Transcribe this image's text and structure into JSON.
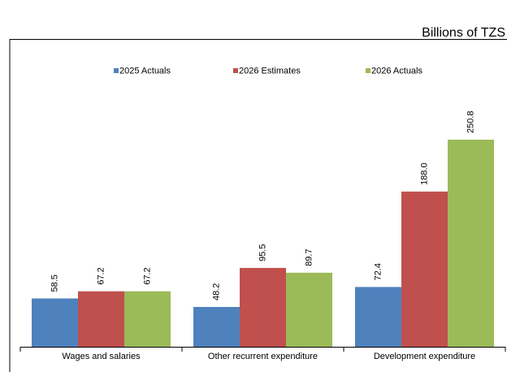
{
  "chart_data": {
    "type": "bar",
    "subtitle": "Billions of TZS",
    "categories": [
      "Wages and salaries",
      "Other recurrent expenditure",
      "Development expenditure"
    ],
    "series": [
      {
        "name": "2025 Actuals",
        "color": "#4f81bd",
        "values": [
          58.5,
          48.2,
          72.4
        ],
        "value_labels": [
          "58.5",
          "48.2",
          "72.4"
        ]
      },
      {
        "name": "2026 Estimates",
        "color": "#c0504d",
        "values": [
          67.2,
          95.5,
          188.0
        ],
        "value_labels": [
          "67.2",
          "95.5",
          "188.0"
        ]
      },
      {
        "name": "2026 Actuals",
        "color": "#9bbb59",
        "values": [
          67.2,
          89.7,
          250.8
        ],
        "value_labels": [
          "67.2",
          "89.7",
          "250.8"
        ]
      }
    ],
    "ylim": [
      0,
      300
    ],
    "legend": "top"
  }
}
